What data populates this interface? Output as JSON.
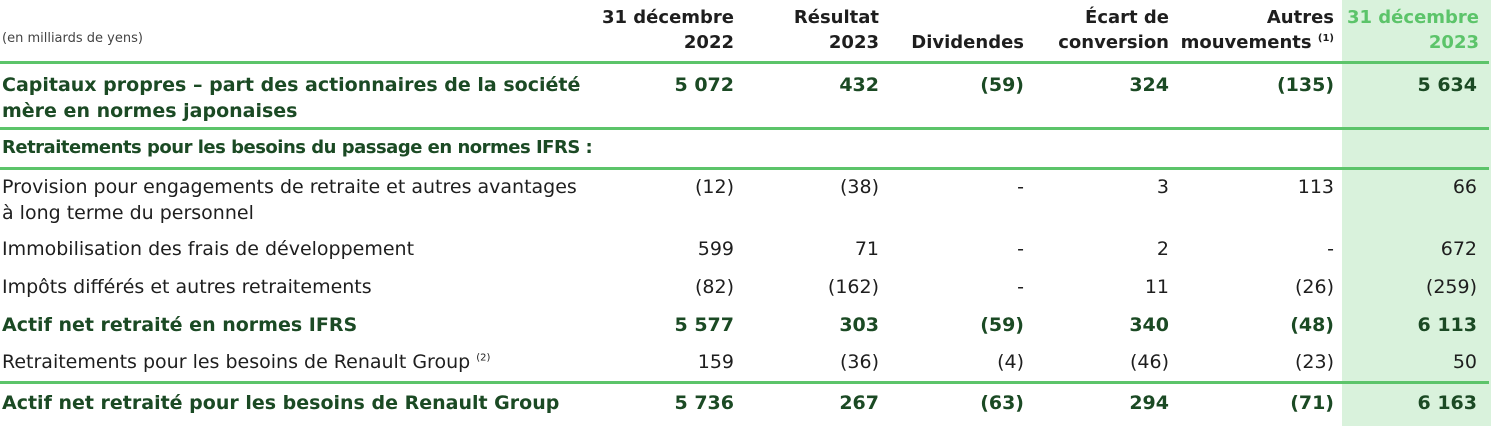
{
  "unit_label": "(en milliards de yens)",
  "headers": {
    "col1": [
      "31 décembre",
      "2022"
    ],
    "col2": [
      "Résultat",
      "2023"
    ],
    "col3": [
      "",
      "Dividendes"
    ],
    "col4": [
      "Écart de",
      "conversion"
    ],
    "col5": [
      "Autres",
      "mouvements"
    ],
    "col5_note": "(1)",
    "col6": [
      "31 décembre",
      "2023"
    ]
  },
  "rows": [
    {
      "label": "Capitaux propres – part des actionnaires de la société mère en normes japonaises",
      "v": [
        "5 072",
        "432",
        "(59)",
        "324",
        "(135)",
        "5 634"
      ]
    },
    {
      "label": "Retraitements pour les besoins du passage en normes IFRS :"
    },
    {
      "label": "Provision pour engagements de retraite et autres avantages à long terme du personnel",
      "v": [
        "(12)",
        "(38)",
        "-",
        "3",
        "113",
        "66"
      ]
    },
    {
      "label": "Immobilisation des frais de développement",
      "v": [
        "599",
        "71",
        "-",
        "2",
        "-",
        "672"
      ]
    },
    {
      "label": "Impôts différés et autres retraitements",
      "v": [
        "(82)",
        "(162)",
        "-",
        "11",
        "(26)",
        "(259)"
      ]
    },
    {
      "label": "Actif net retraité en normes IFRS",
      "v": [
        "5 577",
        "303",
        "(59)",
        "340",
        "(48)",
        "6 113"
      ]
    },
    {
      "label": "Retraitements pour les besoins de Renault Group",
      "note": "(2)",
      "v": [
        "159",
        "(36)",
        "(4)",
        "(46)",
        "(23)",
        "50"
      ]
    },
    {
      "label": "Actif net retraité pour les besoins de Renault Group",
      "v": [
        "5 736",
        "267",
        "(63)",
        "294",
        "(71)",
        "6 163"
      ]
    }
  ]
}
